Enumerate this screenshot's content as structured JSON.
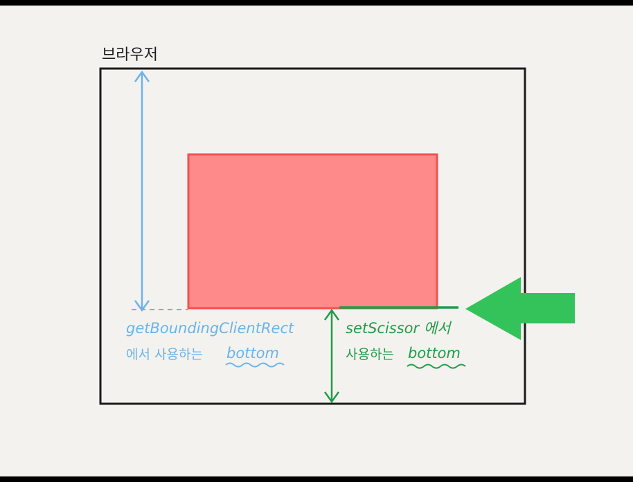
{
  "title": "브라우저",
  "blue_label": {
    "line1": "getBoundingClientRect",
    "line2_prefix": "에서 사용하는",
    "line2_keyword": "bottom"
  },
  "green_label": {
    "line1": "setScissor 에서",
    "line2_prefix": "사용하는",
    "line2_keyword": "bottom"
  },
  "colors": {
    "canvas": "#f4f2ee",
    "frame": "#1a1a1a",
    "element_fill": "#ff8a8a",
    "element_stroke": "#f0504e",
    "blue": "#6ab4e8",
    "green": "#1e9e48",
    "arrow_green": "#33c35a"
  },
  "icons": {
    "pointer_arrow": "big-left-arrow-icon"
  }
}
